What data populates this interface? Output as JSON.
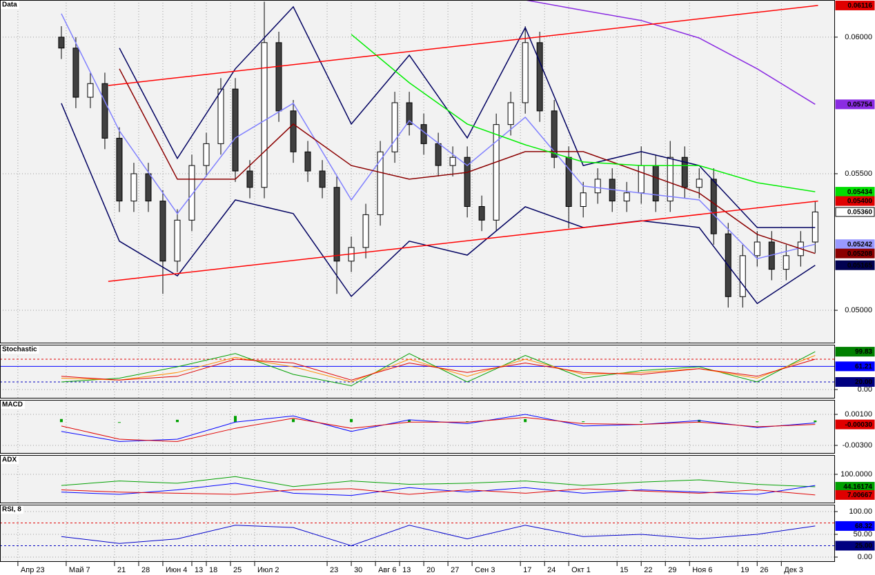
{
  "chart_data": [
    {
      "type": "candlestick",
      "title": "Data",
      "xlim": [
        -0.7,
        172.1
      ],
      "xticks": [
        {
          "value": 3,
          "label": "Апр 23"
        },
        {
          "value": 13,
          "label": "Май 7"
        },
        {
          "value": 23,
          "label": "21"
        },
        {
          "value": 28,
          "label": "28"
        },
        {
          "value": 33,
          "label": "Июн 4"
        },
        {
          "value": 39,
          "label": "13"
        },
        {
          "value": 42,
          "label": "18"
        },
        {
          "value": 47,
          "label": "25"
        },
        {
          "value": 52,
          "label": "Июл 2"
        },
        {
          "value": 67,
          "label": "23"
        },
        {
          "value": 72,
          "label": "30"
        },
        {
          "value": 77,
          "label": "Авг 6"
        },
        {
          "value": 82,
          "label": "13"
        },
        {
          "value": 87,
          "label": "20"
        },
        {
          "value": 92,
          "label": "27"
        },
        {
          "value": 97,
          "label": "Сен 3"
        },
        {
          "value": 107,
          "label": "17"
        },
        {
          "value": 112,
          "label": "24"
        },
        {
          "value": 117,
          "label": "Окт 1"
        },
        {
          "value": 127,
          "label": "15"
        },
        {
          "value": 132,
          "label": "22"
        },
        {
          "value": 137,
          "label": "29"
        },
        {
          "value": 142,
          "label": "Ноя 6"
        },
        {
          "value": 152,
          "label": "19"
        },
        {
          "value": 156,
          "label": "26"
        },
        {
          "value": 161,
          "label": "Дек 3"
        }
      ],
      "ylim": [
        0.04879,
        0.06136
      ],
      "yticks": [
        {
          "value": 0.05,
          "label": "0.05000"
        },
        {
          "value": 0.055,
          "label": "0.05500"
        },
        {
          "value": 0.06,
          "label": "0.06000"
        }
      ],
      "grid": true,
      "up_color": "#ffffff",
      "down_color": "#404040",
      "x": [
        12,
        15,
        18,
        21,
        24,
        27,
        30,
        33,
        36,
        39,
        42,
        45,
        48,
        51,
        54,
        57,
        60,
        63,
        66,
        69,
        72,
        75,
        78,
        81,
        84,
        87,
        90,
        93,
        96,
        99,
        102,
        105,
        108,
        111,
        114,
        117,
        120,
        123,
        126,
        129,
        132,
        135,
        138,
        141,
        144,
        147,
        150,
        153,
        156,
        159,
        162,
        165,
        168
      ],
      "open": [
        0.06,
        0.0596,
        0.0578,
        0.0583,
        0.0563,
        0.054,
        0.055,
        0.054,
        0.0518,
        0.0533,
        0.0553,
        0.0561,
        0.0581,
        0.0551,
        0.0545,
        0.0598,
        0.0573,
        0.0558,
        0.0551,
        0.0545,
        0.0518,
        0.0523,
        0.0535,
        0.0558,
        0.0576,
        0.0568,
        0.0561,
        0.0553,
        0.0556,
        0.0538,
        0.0533,
        0.0568,
        0.0576,
        0.0598,
        0.0573,
        0.0556,
        0.0538,
        0.0543,
        0.0548,
        0.054,
        0.0543,
        0.0553,
        0.054,
        0.0556,
        0.0545,
        0.0548,
        0.0528,
        0.0505,
        0.052,
        0.0525,
        0.0515,
        0.052,
        0.0525
      ],
      "high": [
        0.0604,
        0.06,
        0.0587,
        0.0587,
        0.0567,
        0.0554,
        0.0554,
        0.0544,
        0.0537,
        0.0557,
        0.0565,
        0.0585,
        0.0585,
        0.0555,
        0.0613,
        0.0602,
        0.0577,
        0.0562,
        0.0555,
        0.0549,
        0.0527,
        0.0539,
        0.0562,
        0.058,
        0.058,
        0.0572,
        0.0565,
        0.056,
        0.056,
        0.0542,
        0.0572,
        0.058,
        0.0604,
        0.0602,
        0.0577,
        0.056,
        0.0547,
        0.0552,
        0.0552,
        0.0547,
        0.056,
        0.0557,
        0.0562,
        0.056,
        0.0552,
        0.0552,
        0.0532,
        0.0524,
        0.0529,
        0.0529,
        0.0524,
        0.0529,
        0.054
      ],
      "low": [
        0.0592,
        0.0574,
        0.0574,
        0.0559,
        0.0536,
        0.0536,
        0.0536,
        0.0506,
        0.0514,
        0.0529,
        0.0549,
        0.0557,
        0.0547,
        0.0541,
        0.0541,
        0.0569,
        0.0554,
        0.0547,
        0.0541,
        0.0506,
        0.0514,
        0.0519,
        0.0531,
        0.0554,
        0.0564,
        0.0557,
        0.0549,
        0.0549,
        0.0534,
        0.0529,
        0.0529,
        0.0564,
        0.0572,
        0.0569,
        0.0552,
        0.053,
        0.0534,
        0.0539,
        0.0536,
        0.0536,
        0.0539,
        0.0536,
        0.0536,
        0.0541,
        0.0541,
        0.0524,
        0.0501,
        0.0501,
        0.0516,
        0.0511,
        0.0511,
        0.0516,
        0.0521
      ],
      "close": [
        0.0596,
        0.0578,
        0.0583,
        0.0563,
        0.054,
        0.055,
        0.054,
        0.0518,
        0.0533,
        0.0553,
        0.0561,
        0.0581,
        0.0551,
        0.0545,
        0.0598,
        0.0573,
        0.0558,
        0.0551,
        0.0545,
        0.0518,
        0.0523,
        0.0535,
        0.0558,
        0.0576,
        0.0568,
        0.0561,
        0.0553,
        0.0556,
        0.0538,
        0.0533,
        0.0568,
        0.0576,
        0.0598,
        0.0573,
        0.0556,
        0.0538,
        0.0543,
        0.0548,
        0.054,
        0.0543,
        0.0553,
        0.054,
        0.0556,
        0.0545,
        0.0548,
        0.0528,
        0.0505,
        0.052,
        0.0525,
        0.0515,
        0.052,
        0.0525,
        0.0536
      ],
      "lines": [
        {
          "color": "#000060",
          "x": [
            12,
            24,
            36,
            48,
            60,
            72,
            84,
            96,
            108,
            120,
            132,
            144,
            156,
            168
          ],
          "values": [
            null,
            0.0596,
            0.05556,
            0.05884,
            0.06111,
            0.05682,
            0.05934,
            0.05631,
            0.06035,
            0.0553,
            0.05581,
            0.0553,
            0.05303,
            0.05303
          ]
        },
        {
          "color": "#000060",
          "x": [
            12,
            24,
            36,
            48,
            60,
            72,
            84,
            96,
            108,
            120,
            132,
            144,
            156,
            168
          ],
          "values": [
            0.05758,
            0.05253,
            0.05126,
            0.05404,
            0.05354,
            0.05051,
            0.05253,
            0.05202,
            0.05379,
            0.05303,
            0.05328,
            0.05303,
            0.05025,
            0.05165
          ]
        },
        {
          "color": "#8080ff",
          "x": [
            12,
            24,
            36,
            48,
            60,
            72,
            84,
            96,
            108,
            120,
            132,
            144,
            156,
            168
          ],
          "values": [
            0.06086,
            0.05657,
            0.05354,
            0.05631,
            0.05758,
            0.05404,
            0.05694,
            0.0553,
            0.05707,
            0.05455,
            0.05429,
            0.05404,
            0.05189,
            0.05242
          ]
        },
        {
          "color": "#8b0000",
          "x": [
            12,
            24,
            36,
            48,
            60,
            72,
            84,
            96,
            108,
            120,
            132,
            144,
            156,
            168
          ],
          "values": [
            null,
            0.05884,
            0.0548,
            0.0548,
            0.05682,
            0.0553,
            0.0548,
            0.05505,
            0.05581,
            0.05581,
            0.05505,
            0.05429,
            0.05278,
            0.05208
          ]
        },
        {
          "color": "#00ee00",
          "x": [
            12,
            24,
            36,
            48,
            60,
            72,
            84,
            96,
            108,
            120,
            132,
            144,
            156,
            168
          ],
          "values": [
            null,
            null,
            null,
            null,
            null,
            0.0601,
            0.05833,
            0.05682,
            0.05606,
            0.05543,
            0.0553,
            0.0553,
            0.05467,
            0.05434
          ]
        },
        {
          "color": "#8a2be2",
          "x": [
            108,
            120,
            132,
            144,
            156,
            168
          ],
          "values": [
            0.06136,
            0.06098,
            0.06061,
            0.05997,
            0.05884,
            0.05754
          ]
        },
        {
          "color": "#ff0000",
          "x": [
            21.7,
            168.6
          ],
          "values": [
            0.05823,
            0.06116
          ]
        },
        {
          "color": "#ff0000",
          "x": [
            21.7,
            168.6
          ],
          "values": [
            0.05106,
            0.054
          ]
        }
      ],
      "price_tags": [
        {
          "value": 0.06116,
          "label": "0.06116",
          "color": "#e00000"
        },
        {
          "value": 0.05754,
          "label": "0.05754",
          "color": "#8a2be2"
        },
        {
          "value": 0.05434,
          "label": "0.05434",
          "color": "#00dd00"
        },
        {
          "value": 0.054,
          "label": "0.05400",
          "color": "#e00000"
        },
        {
          "value": 0.0536,
          "label": "0.05360",
          "color": "#ffffff"
        },
        {
          "value": 0.05242,
          "label": "0.05242",
          "color": "#9999ff"
        },
        {
          "value": 0.05208,
          "label": "0.05208",
          "color": "#8b0000"
        },
        {
          "value": 0.05165,
          "label": "0.05165",
          "color": "#000050"
        }
      ]
    },
    {
      "type": "line",
      "title": "Stochastic",
      "ylim": [
        -23.6,
        118.2
      ],
      "yticks": [
        {
          "value": 0,
          "label": "0.00"
        }
      ],
      "grid": true,
      "levels": [
        {
          "value": 80,
          "color": "#e00000",
          "style": "dashed"
        },
        {
          "value": 20,
          "color": "#0000c0",
          "style": "dashed"
        },
        {
          "value": 61.21,
          "color": "#0000ff",
          "style": "solid"
        }
      ],
      "x": [
        12,
        24,
        36,
        48,
        60,
        72,
        84,
        96,
        108,
        120,
        132,
        144,
        156,
        168
      ],
      "series": [
        {
          "color": "#00a000",
          "values": [
            20,
            30,
            60,
            95,
            40,
            10,
            95,
            20,
            90,
            30,
            50,
            60,
            20,
            99.83
          ]
        },
        {
          "color": "#ff8c00",
          "values": [
            30,
            25,
            45,
            85,
            60,
            20,
            80,
            35,
            80,
            40,
            45,
            55,
            30,
            90
          ]
        },
        {
          "color": "#e00000",
          "values": [
            35,
            25,
            35,
            80,
            70,
            25,
            70,
            45,
            70,
            45,
            40,
            55,
            35,
            80
          ]
        }
      ],
      "price_tags": [
        {
          "value": 99.83,
          "label": "99.83",
          "color": "#008000"
        },
        {
          "value": 61.21,
          "label": "61.21",
          "color": "#0000ff"
        },
        {
          "value": 20,
          "label": "20.00",
          "color": "#000080"
        }
      ]
    },
    {
      "type": "line",
      "title": "MACD",
      "ylim": [
        -0.004067,
        0.002867
      ],
      "yticks": [
        {
          "value": 0.001,
          "label": "0.00100"
        },
        {
          "value": -0.003,
          "label": "-0.00300"
        }
      ],
      "grid": true,
      "x": [
        12,
        24,
        36,
        48,
        60,
        72,
        84,
        96,
        108,
        120,
        132,
        144,
        156,
        168
      ],
      "series": [
        {
          "type": "bar",
          "color": "#00a000",
          "values": [
            0.0004,
            0,
            0.0003,
            0.0008,
            0.0004,
            0.0004,
            0.0003,
            0.0001,
            0.0004,
            0.0001,
            0.0001,
            0.0003,
            0.0001,
            0.0002
          ]
        },
        {
          "color": "#0000ff",
          "values": [
            -0.0012,
            -0.0025,
            -0.0022,
            0,
            0.0008,
            -0.0012,
            0.0003,
            -0.0002,
            0.001,
            -0.0005,
            -0.0003,
            0.0002,
            -0.0007,
            -0.0001
          ]
        },
        {
          "color": "#e00000",
          "values": [
            -0.0005,
            -0.0022,
            -0.0025,
            -0.0008,
            0.0005,
            -0.0008,
            0,
            0,
            0.0006,
            -0.0002,
            -0.0003,
            0,
            -0.0006,
            -0.0003
          ]
        }
      ],
      "price_tags": [
        {
          "value": -0.0003,
          "label": "-0.00030",
          "color": "#e00000"
        }
      ]
    },
    {
      "type": "line",
      "title": "ADX",
      "ylim": [
        -30.4,
        186.7
      ],
      "yticks": [
        {
          "value": 100,
          "label": "100.0000"
        }
      ],
      "grid": true,
      "x": [
        12,
        24,
        36,
        48,
        60,
        72,
        84,
        96,
        108,
        120,
        132,
        144,
        156,
        168
      ],
      "series": [
        {
          "color": "#00a000",
          "values": [
            50,
            70,
            60,
            90,
            45,
            70,
            55,
            60,
            70,
            50,
            65,
            75,
            55,
            44.16174
          ]
        },
        {
          "color": "#0000ff",
          "values": [
            20,
            10,
            30,
            60,
            15,
            5,
            40,
            20,
            40,
            15,
            30,
            20,
            10,
            50
          ]
        },
        {
          "color": "#e00000",
          "values": [
            30,
            20,
            15,
            10,
            30,
            35,
            10,
            30,
            15,
            35,
            25,
            15,
            30,
            7.00667
          ]
        }
      ],
      "price_tags": [
        {
          "value": 44.16174,
          "label": "44.16174",
          "color": "#00a000"
        },
        {
          "value": 7.00667,
          "label": "7.00667",
          "color": "#e00000"
        }
      ]
    },
    {
      "type": "line",
      "title": "RSI, 8",
      "ylim": [
        -10.6,
        115.2
      ],
      "yticks": [
        {
          "value": 0,
          "label": "0.00"
        },
        {
          "value": 50,
          "label": "50.00"
        },
        {
          "value": 100,
          "label": "100.00"
        }
      ],
      "grid": true,
      "levels": [
        {
          "value": 75,
          "color": "#e00000",
          "style": "dashed"
        },
        {
          "value": 25,
          "color": "#0000c0",
          "style": "dashed"
        }
      ],
      "x": [
        12,
        24,
        36,
        48,
        60,
        72,
        84,
        96,
        108,
        120,
        132,
        144,
        156,
        168
      ],
      "series": [
        {
          "color": "#0000cc",
          "values": [
            45,
            30,
            40,
            70,
            65,
            25,
            70,
            40,
            70,
            45,
            50,
            40,
            50,
            68.32
          ]
        }
      ],
      "price_tags": [
        {
          "value": 68.32,
          "label": "68.32",
          "color": "#0000ff"
        },
        {
          "value": 25,
          "label": "25.00",
          "color": "#000080"
        }
      ]
    }
  ]
}
